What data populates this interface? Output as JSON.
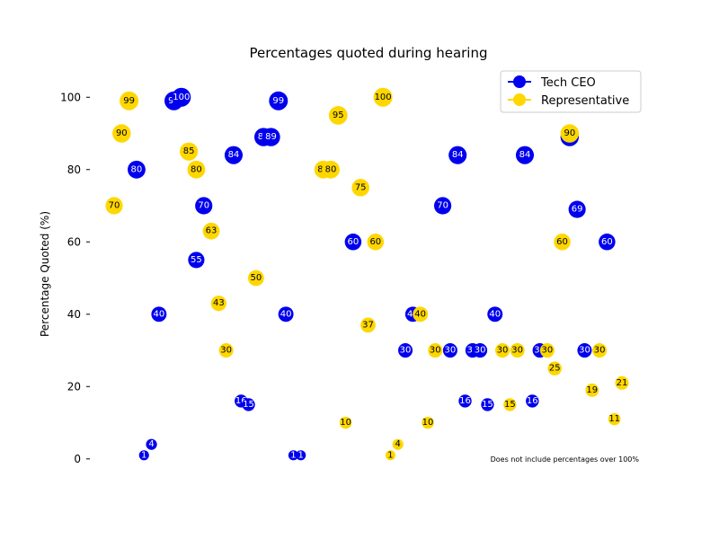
{
  "chart_data": {
    "type": "scatter",
    "title": "Percentages quoted during hearing",
    "ylabel": "Percentage Quoted (%)",
    "xlabel": "",
    "ylim": [
      -7,
      110
    ],
    "xlim": [
      0,
      83
    ],
    "yticks": [
      0,
      20,
      40,
      60,
      80,
      100
    ],
    "grid": false,
    "legend_position": "top-right",
    "annotation": "Does not include percentages over 100%",
    "series": [
      {
        "name": "Tech CEO",
        "color": "#0000ee",
        "text_color": "#ffffff",
        "points": [
          {
            "x": 4.0,
            "y": 1,
            "label": "1"
          },
          {
            "x": 5.0,
            "y": 4,
            "label": "4"
          },
          {
            "x": 3.0,
            "y": 80,
            "label": "80"
          },
          {
            "x": 6.0,
            "y": 40,
            "label": "40"
          },
          {
            "x": 8.0,
            "y": 99,
            "label": "99"
          },
          {
            "x": 9.0,
            "y": 100,
            "label": "100"
          },
          {
            "x": 11.0,
            "y": 55,
            "label": "55"
          },
          {
            "x": 12.0,
            "y": 70,
            "label": "70"
          },
          {
            "x": 16.0,
            "y": 84,
            "label": "84"
          },
          {
            "x": 17.0,
            "y": 16,
            "label": "16"
          },
          {
            "x": 18.0,
            "y": 15,
            "label": "15"
          },
          {
            "x": 20.0,
            "y": 89,
            "label": "89"
          },
          {
            "x": 21.0,
            "y": 89,
            "label": "89"
          },
          {
            "x": 22.0,
            "y": 99,
            "label": "99"
          },
          {
            "x": 23.0,
            "y": 40,
            "label": "40"
          },
          {
            "x": 24.0,
            "y": 1,
            "label": "1"
          },
          {
            "x": 25.0,
            "y": 1,
            "label": "1"
          },
          {
            "x": 32.0,
            "y": 60,
            "label": "60"
          },
          {
            "x": 39.0,
            "y": 30,
            "label": "30"
          },
          {
            "x": 40.0,
            "y": 40,
            "label": "40"
          },
          {
            "x": 44.0,
            "y": 70,
            "label": "70"
          },
          {
            "x": 45.0,
            "y": 30,
            "label": "30"
          },
          {
            "x": 46.0,
            "y": 84,
            "label": "84"
          },
          {
            "x": 47.0,
            "y": 16,
            "label": "16"
          },
          {
            "x": 48.0,
            "y": 30,
            "label": "30"
          },
          {
            "x": 49.0,
            "y": 30,
            "label": "30"
          },
          {
            "x": 50.0,
            "y": 15,
            "label": "15"
          },
          {
            "x": 51.0,
            "y": 40,
            "label": "40"
          },
          {
            "x": 55.0,
            "y": 84,
            "label": "84"
          },
          {
            "x": 56.0,
            "y": 16,
            "label": "16"
          },
          {
            "x": 57.0,
            "y": 30,
            "label": "30"
          },
          {
            "x": 61.0,
            "y": 89,
            "label": "89"
          },
          {
            "x": 62.0,
            "y": 69,
            "label": "69"
          },
          {
            "x": 63.0,
            "y": 30,
            "label": "30"
          },
          {
            "x": 66.0,
            "y": 60,
            "label": "60"
          }
        ]
      },
      {
        "name": "Representative",
        "color": "#ffd700",
        "text_color": "#000000",
        "points": [
          {
            "x": 0.0,
            "y": 70,
            "label": "70"
          },
          {
            "x": 1.0,
            "y": 90,
            "label": "90"
          },
          {
            "x": 2.0,
            "y": 99,
            "label": "99"
          },
          {
            "x": 10.0,
            "y": 85,
            "label": "85"
          },
          {
            "x": 11.0,
            "y": 80,
            "label": "80"
          },
          {
            "x": 13.0,
            "y": 63,
            "label": "63"
          },
          {
            "x": 14.0,
            "y": 43,
            "label": "43"
          },
          {
            "x": 15.0,
            "y": 30,
            "label": "30"
          },
          {
            "x": 19.0,
            "y": 50,
            "label": "50"
          },
          {
            "x": 28.0,
            "y": 80,
            "label": "80"
          },
          {
            "x": 29.0,
            "y": 80,
            "label": "80"
          },
          {
            "x": 30.0,
            "y": 95,
            "label": "95"
          },
          {
            "x": 31.0,
            "y": 10,
            "label": "10"
          },
          {
            "x": 33.0,
            "y": 75,
            "label": "75"
          },
          {
            "x": 34.0,
            "y": 37,
            "label": "37"
          },
          {
            "x": 35.0,
            "y": 60,
            "label": "60"
          },
          {
            "x": 36.0,
            "y": 100,
            "label": "100"
          },
          {
            "x": 37.0,
            "y": 1,
            "label": "1"
          },
          {
            "x": 38.0,
            "y": 4,
            "label": "4"
          },
          {
            "x": 41.0,
            "y": 40,
            "label": "40"
          },
          {
            "x": 42.0,
            "y": 10,
            "label": "10"
          },
          {
            "x": 43.0,
            "y": 30,
            "label": "30"
          },
          {
            "x": 52.0,
            "y": 30,
            "label": "30"
          },
          {
            "x": 53.0,
            "y": 15,
            "label": "15"
          },
          {
            "x": 54.0,
            "y": 30,
            "label": "30"
          },
          {
            "x": 58.0,
            "y": 30,
            "label": "30"
          },
          {
            "x": 59.0,
            "y": 25,
            "label": "25"
          },
          {
            "x": 60.0,
            "y": 60,
            "label": "60"
          },
          {
            "x": 61.0,
            "y": 90,
            "label": "90"
          },
          {
            "x": 64.0,
            "y": 19,
            "label": "19"
          },
          {
            "x": 65.0,
            "y": 30,
            "label": "30"
          },
          {
            "x": 67.0,
            "y": 11,
            "label": "11"
          },
          {
            "x": 68.0,
            "y": 21,
            "label": "21"
          }
        ]
      }
    ]
  }
}
